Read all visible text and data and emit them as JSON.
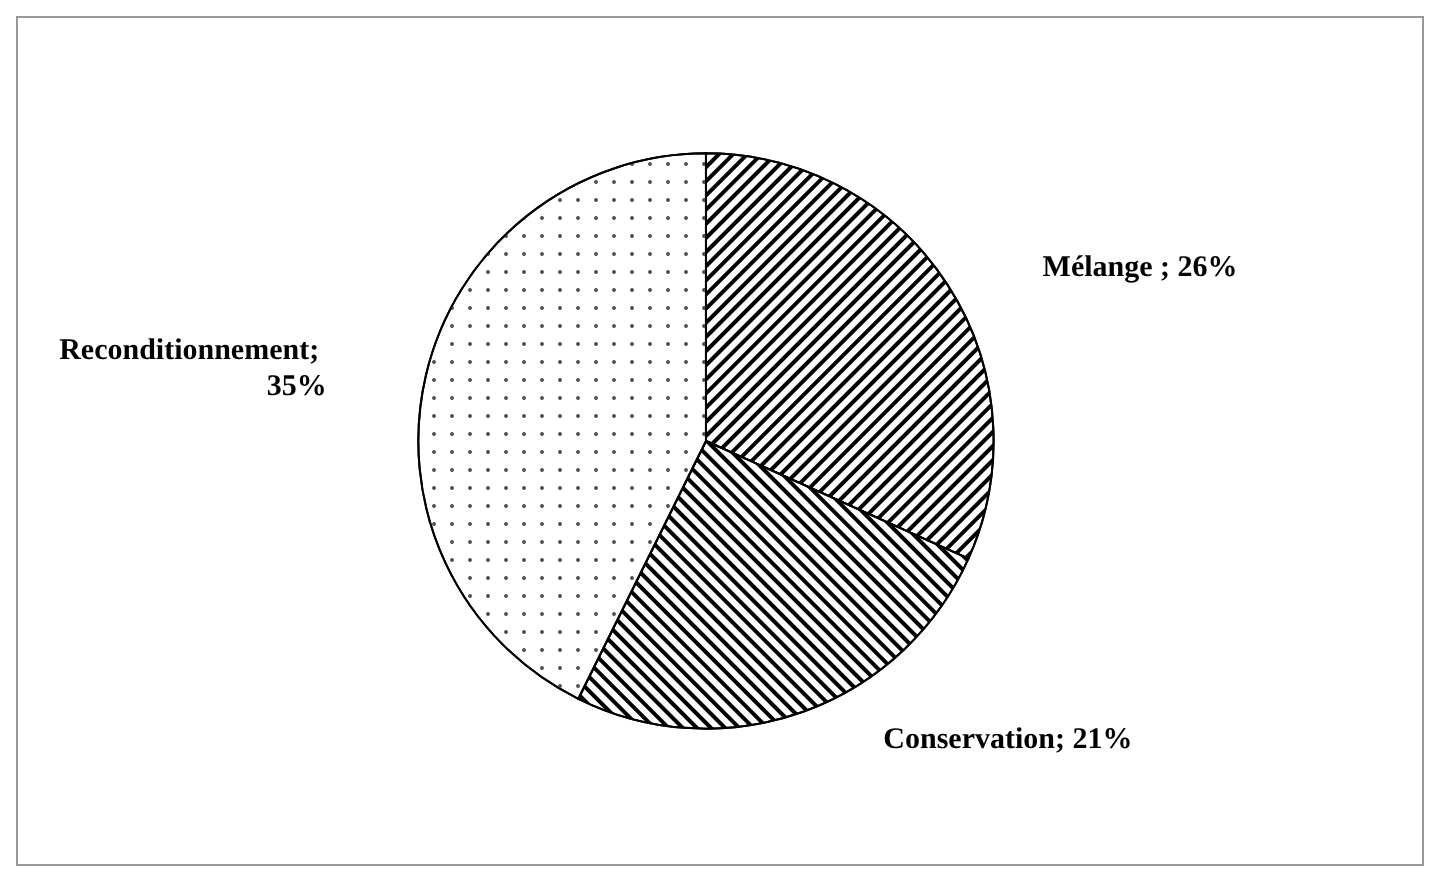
{
  "chart_data": {
    "type": "pie",
    "categories": [
      "Mélange ",
      "Conservation",
      "Reconditionnement"
    ],
    "values": [
      26,
      21,
      35
    ],
    "colors": [
      "#ffffff",
      "#ffffff",
      "#ffffff"
    ],
    "value_labels": [
      "; 26%",
      "; 21%",
      "; 35%"
    ],
    "legend": false
  }
}
